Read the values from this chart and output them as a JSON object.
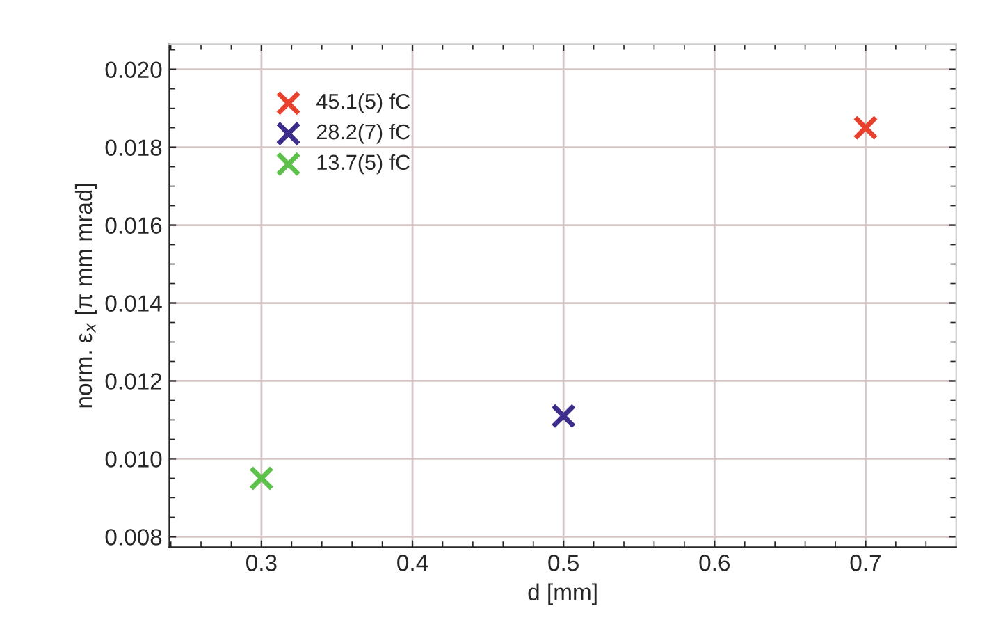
{
  "chart_data": {
    "type": "scatter",
    "xlabel": "d [mm]",
    "ylabel": "norm. ε$_{x}$ [π mm mrad]",
    "xlim": [
      0.239,
      0.76
    ],
    "ylim": [
      0.00773,
      0.02065
    ],
    "xticks": [
      0.3,
      0.4,
      0.5,
      0.6,
      0.7
    ],
    "yticks": [
      {
        "value": 0.008,
        "label": "0.008"
      },
      {
        "value": 0.01,
        "label": "0.010"
      },
      {
        "value": 0.012,
        "label": "0.012"
      },
      {
        "value": 0.014,
        "label": "0.014"
      },
      {
        "value": 0.016,
        "label": "0.016"
      },
      {
        "value": 0.018,
        "label": "0.018"
      },
      {
        "value": 0.02,
        "label": "0.020"
      }
    ],
    "grid": true,
    "legend": "top left",
    "marker": "cross",
    "series": [
      {
        "name": "45.1(5) fC",
        "color": "#e8412e",
        "x": [
          0.7
        ],
        "values": [
          0.0185
        ]
      },
      {
        "name": "28.2(7) fC",
        "color": "#3d2c8a",
        "x": [
          0.5
        ],
        "values": [
          0.0111
        ]
      },
      {
        "name": "13.7(5) fC",
        "color": "#5cc04a",
        "x": [
          0.3
        ],
        "values": [
          0.0095
        ]
      }
    ]
  }
}
